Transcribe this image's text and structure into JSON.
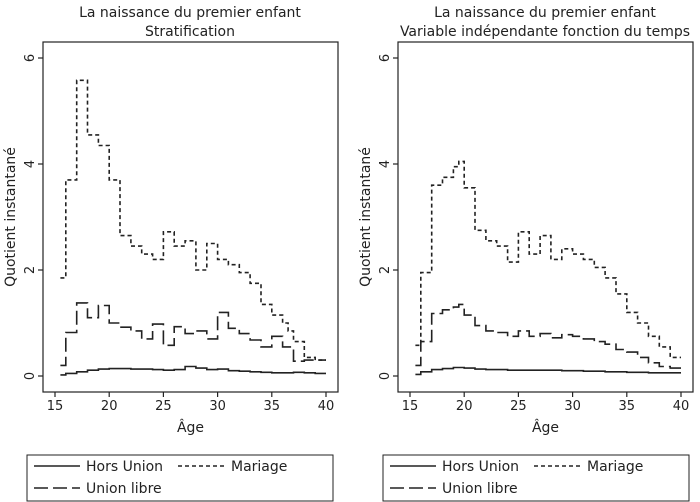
{
  "chart_data": [
    {
      "type": "line",
      "title": "La naissance du premier enfant",
      "subtitle": "Stratification",
      "xlabel": "Âge",
      "ylabel": "Quotient instantané",
      "xlim": [
        15,
        40
      ],
      "ylim": [
        0,
        6
      ],
      "xticks": [
        "15",
        "20",
        "25",
        "30",
        "35",
        "40"
      ],
      "yticks": [
        "0",
        "2",
        "4",
        "6"
      ],
      "grid": false,
      "legend_position": "bottom",
      "step": true,
      "series": [
        {
          "name": "Hors Union",
          "dash": "solid",
          "x": [
            15.5,
            16,
            17,
            18,
            19,
            20,
            21,
            22,
            23,
            24,
            25,
            26,
            27,
            28,
            29,
            30,
            31,
            32,
            33,
            34,
            35,
            36,
            37,
            38,
            39,
            40
          ],
          "y": [
            0.02,
            0.05,
            0.08,
            0.11,
            0.13,
            0.14,
            0.14,
            0.13,
            0.13,
            0.12,
            0.11,
            0.12,
            0.18,
            0.15,
            0.12,
            0.13,
            0.1,
            0.09,
            0.08,
            0.07,
            0.06,
            0.06,
            0.07,
            0.06,
            0.05,
            0.05
          ]
        },
        {
          "name": "Mariage",
          "dash": "short",
          "x": [
            15.5,
            16,
            16.5,
            17,
            17.5,
            18,
            18.5,
            19,
            20,
            21,
            22,
            23,
            24,
            25,
            26,
            27,
            28,
            29,
            30,
            31,
            32,
            33,
            34,
            35,
            36,
            36.5,
            37,
            38,
            39,
            40
          ],
          "y": [
            1.85,
            3.7,
            3.7,
            5.58,
            5.58,
            4.55,
            4.55,
            4.35,
            3.7,
            2.65,
            2.45,
            2.3,
            2.2,
            2.72,
            2.45,
            2.55,
            2.0,
            2.5,
            2.2,
            2.1,
            1.95,
            1.75,
            1.35,
            1.15,
            1.0,
            0.85,
            0.65,
            0.35,
            0.3,
            0.3
          ]
        },
        {
          "name": "Union libre",
          "dash": "long",
          "x": [
            15.5,
            16,
            16.5,
            17,
            17.5,
            18,
            18.5,
            19,
            20,
            21,
            22,
            23,
            24,
            25,
            26,
            27,
            28,
            29,
            30,
            31,
            32,
            33,
            34,
            35,
            36,
            37,
            38,
            39,
            40
          ],
          "y": [
            0.2,
            0.82,
            0.82,
            1.38,
            1.38,
            1.1,
            1.1,
            1.33,
            1.0,
            0.92,
            0.85,
            0.7,
            0.98,
            0.58,
            0.93,
            0.8,
            0.85,
            0.7,
            1.2,
            0.9,
            0.8,
            0.68,
            0.55,
            0.75,
            0.55,
            0.28,
            0.3,
            0.3,
            0.3
          ]
        }
      ]
    },
    {
      "type": "line",
      "title": "La naissance du premier enfant",
      "subtitle": "Variable indépendante fonction du temps",
      "xlabel": "Âge",
      "ylabel": "Quotient instantané",
      "xlim": [
        15,
        40
      ],
      "ylim": [
        0,
        6
      ],
      "xticks": [
        "15",
        "20",
        "25",
        "30",
        "35",
        "40"
      ],
      "yticks": [
        "0",
        "2",
        "4",
        "6"
      ],
      "grid": false,
      "legend_position": "bottom",
      "step": true,
      "series": [
        {
          "name": "Hors Union",
          "dash": "solid",
          "x": [
            15.5,
            16,
            17,
            18,
            19,
            20,
            21,
            22,
            23,
            24,
            25,
            26,
            27,
            28,
            29,
            30,
            31,
            32,
            33,
            34,
            35,
            36,
            37,
            38,
            39,
            40
          ],
          "y": [
            0.03,
            0.08,
            0.12,
            0.14,
            0.16,
            0.15,
            0.13,
            0.12,
            0.12,
            0.11,
            0.11,
            0.11,
            0.11,
            0.11,
            0.1,
            0.1,
            0.09,
            0.09,
            0.08,
            0.08,
            0.07,
            0.07,
            0.06,
            0.06,
            0.06,
            0.06
          ]
        },
        {
          "name": "Mariage",
          "dash": "short",
          "x": [
            15.5,
            16,
            16.5,
            17,
            17.5,
            18,
            18.5,
            19,
            19.5,
            20,
            21,
            22,
            23,
            24,
            25,
            25.5,
            26,
            26.5,
            27,
            28,
            28.5,
            29,
            30,
            31,
            32,
            33,
            34,
            35,
            36,
            37,
            38,
            39,
            40
          ],
          "y": [
            0.58,
            1.95,
            1.95,
            3.6,
            3.6,
            3.75,
            3.75,
            3.95,
            4.05,
            3.55,
            2.75,
            2.55,
            2.45,
            2.15,
            2.72,
            2.72,
            2.3,
            2.3,
            2.65,
            2.2,
            2.2,
            2.4,
            2.3,
            2.2,
            2.05,
            1.85,
            1.55,
            1.2,
            1.0,
            0.75,
            0.55,
            0.35,
            0.35
          ]
        },
        {
          "name": "Union libre",
          "dash": "long",
          "x": [
            15.5,
            16,
            16.5,
            17,
            18,
            19,
            19.5,
            20,
            21,
            22,
            23,
            24,
            25,
            26,
            27,
            28,
            29,
            30,
            31,
            32,
            33,
            34,
            35,
            36,
            37,
            38,
            39,
            40
          ],
          "y": [
            0.2,
            0.65,
            0.65,
            1.18,
            1.25,
            1.3,
            1.35,
            1.15,
            0.95,
            0.85,
            0.82,
            0.75,
            0.85,
            0.75,
            0.8,
            0.72,
            0.78,
            0.75,
            0.7,
            0.65,
            0.6,
            0.5,
            0.45,
            0.35,
            0.25,
            0.18,
            0.15,
            0.15
          ]
        }
      ]
    }
  ]
}
